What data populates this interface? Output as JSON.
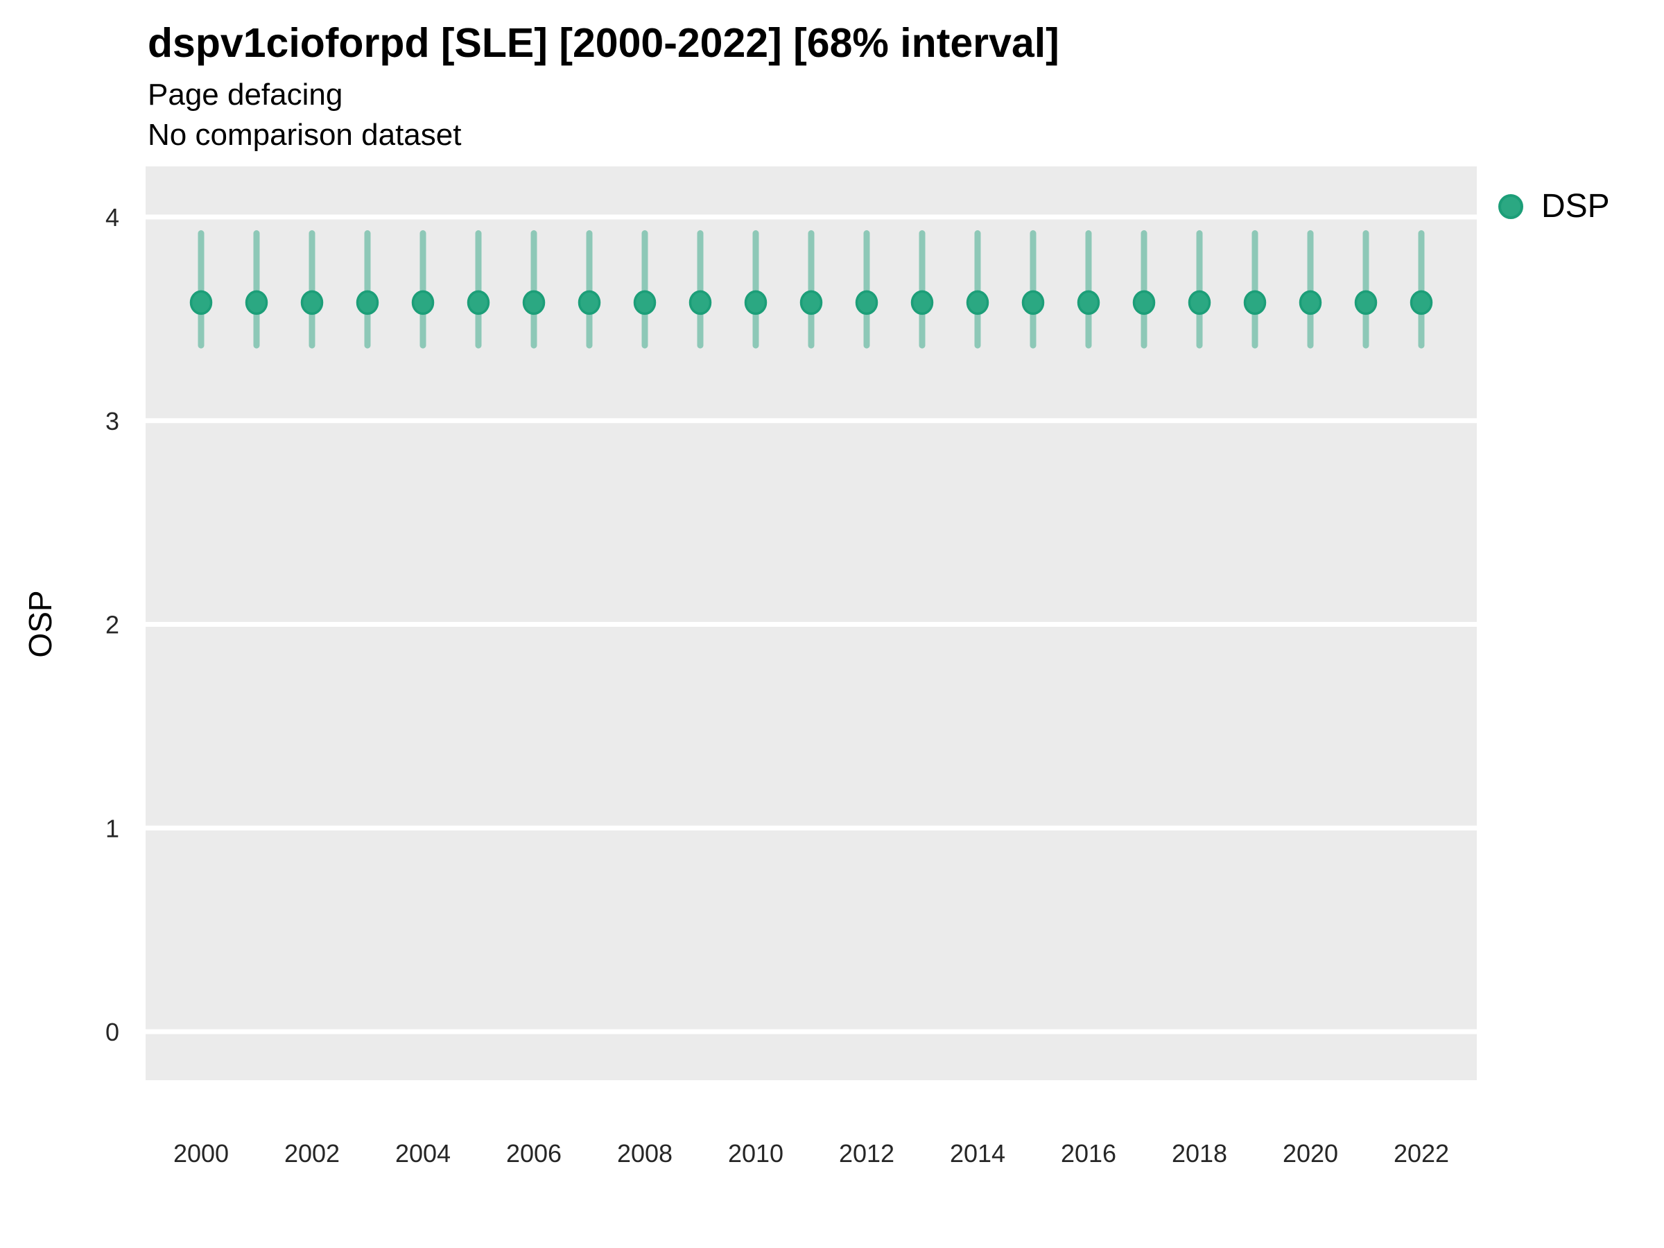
{
  "header": {
    "title": "dspv1cioforpd [SLE] [2000-2022] [68% interval]",
    "subtitle1": "Page defacing",
    "subtitle2": "No comparison dataset"
  },
  "y_axis_title": "OSP",
  "legend": {
    "position": "right",
    "items": [
      {
        "label": "DSP",
        "marker": "circle",
        "fill": "#2BA882",
        "border": "#1C9E78"
      }
    ]
  },
  "colors": {
    "panel_background": "#EBEBEB",
    "gridline": "#FFFFFF",
    "point_fill": "#2BA882",
    "point_border": "#1C9E78",
    "interval_bar": "rgba(27,158,119,0.45)",
    "axis_text": "#262626",
    "page_background": "#FFFFFF"
  },
  "chart_data": {
    "type": "scatter",
    "subtype": "point-interval",
    "title": "dspv1cioforpd [SLE] [2000-2022] [68% interval]",
    "subtitle": [
      "Page defacing",
      "No comparison dataset"
    ],
    "xlabel": "",
    "ylabel": "OSP",
    "xlim": [
      1999,
      2023
    ],
    "ylim": [
      0,
      4
    ],
    "grid": "major-horizontal-only",
    "legend_position": "right",
    "xticks": {
      "values": [
        2000,
        2002,
        2004,
        2006,
        2008,
        2010,
        2012,
        2014,
        2016,
        2018,
        2020,
        2022
      ],
      "labels": [
        "2000",
        "2002",
        "2004",
        "2006",
        "2008",
        "2010",
        "2012",
        "2014",
        "2016",
        "2018",
        "2020",
        "2022"
      ]
    },
    "yticks": {
      "values": [
        0,
        1,
        2,
        3,
        4
      ],
      "labels": [
        "0",
        "1",
        "2",
        "3",
        "4"
      ]
    },
    "series": [
      {
        "name": "DSP",
        "interval": "68%",
        "points": [
          {
            "x": 2000,
            "y": 3.58,
            "lo": 3.37,
            "hi": 3.92
          },
          {
            "x": 2001,
            "y": 3.58,
            "lo": 3.37,
            "hi": 3.92
          },
          {
            "x": 2002,
            "y": 3.58,
            "lo": 3.37,
            "hi": 3.92
          },
          {
            "x": 2003,
            "y": 3.58,
            "lo": 3.37,
            "hi": 3.92
          },
          {
            "x": 2004,
            "y": 3.58,
            "lo": 3.37,
            "hi": 3.92
          },
          {
            "x": 2005,
            "y": 3.58,
            "lo": 3.37,
            "hi": 3.92
          },
          {
            "x": 2006,
            "y": 3.58,
            "lo": 3.37,
            "hi": 3.92
          },
          {
            "x": 2007,
            "y": 3.58,
            "lo": 3.37,
            "hi": 3.92
          },
          {
            "x": 2008,
            "y": 3.58,
            "lo": 3.37,
            "hi": 3.92
          },
          {
            "x": 2009,
            "y": 3.58,
            "lo": 3.37,
            "hi": 3.92
          },
          {
            "x": 2010,
            "y": 3.58,
            "lo": 3.37,
            "hi": 3.92
          },
          {
            "x": 2011,
            "y": 3.58,
            "lo": 3.37,
            "hi": 3.92
          },
          {
            "x": 2012,
            "y": 3.58,
            "lo": 3.37,
            "hi": 3.92
          },
          {
            "x": 2013,
            "y": 3.58,
            "lo": 3.37,
            "hi": 3.92
          },
          {
            "x": 2014,
            "y": 3.58,
            "lo": 3.37,
            "hi": 3.92
          },
          {
            "x": 2015,
            "y": 3.58,
            "lo": 3.37,
            "hi": 3.92
          },
          {
            "x": 2016,
            "y": 3.58,
            "lo": 3.37,
            "hi": 3.92
          },
          {
            "x": 2017,
            "y": 3.58,
            "lo": 3.37,
            "hi": 3.92
          },
          {
            "x": 2018,
            "y": 3.58,
            "lo": 3.37,
            "hi": 3.92
          },
          {
            "x": 2019,
            "y": 3.58,
            "lo": 3.37,
            "hi": 3.92
          },
          {
            "x": 2020,
            "y": 3.58,
            "lo": 3.37,
            "hi": 3.92
          },
          {
            "x": 2021,
            "y": 3.58,
            "lo": 3.37,
            "hi": 3.92
          },
          {
            "x": 2022,
            "y": 3.58,
            "lo": 3.37,
            "hi": 3.92
          }
        ]
      }
    ]
  }
}
